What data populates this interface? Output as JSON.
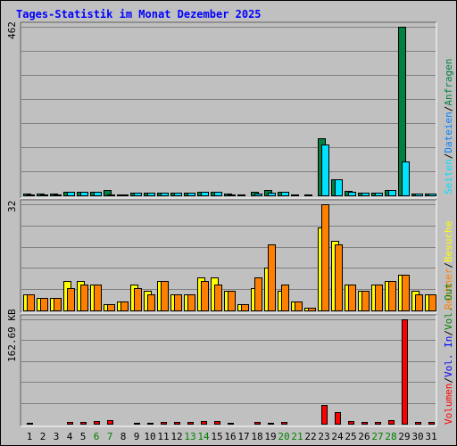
{
  "title": "Tages-Statistik im Monat Dezember 2025",
  "colors": {
    "background": "#c0c0c0",
    "title": "#0000ff",
    "hits": "#008040",
    "files": "#0080ff",
    "pages": "#00e0ff",
    "visits": "#ffff00",
    "sites": "#ff8000",
    "kbytes": "#ff0000",
    "weekend": "#008000",
    "weekday": "#000000"
  },
  "x_labels": [
    "1",
    "2",
    "3",
    "4",
    "5",
    "6",
    "7",
    "8",
    "9",
    "10",
    "11",
    "12",
    "13",
    "14",
    "15",
    "16",
    "17",
    "18",
    "19",
    "20",
    "21",
    "22",
    "23",
    "24",
    "25",
    "26",
    "27",
    "28",
    "29",
    "30",
    "31"
  ],
  "weekend_days": [
    6,
    7,
    13,
    14,
    20,
    21,
    27,
    28
  ],
  "chart_data": [
    {
      "type": "bar",
      "name": "hits-files-pages",
      "ymax_label": "462",
      "ylim": [
        0,
        462
      ],
      "legend": {
        "hits": "Anfragen",
        "sep1": "/",
        "files": "Dateien",
        "sep2": "/",
        "pages": "Seiten"
      },
      "series": [
        {
          "name": "Anfragen",
          "color": "#008040",
          "values": [
            7,
            7,
            7,
            13,
            13,
            13,
            17,
            6,
            10,
            10,
            10,
            10,
            10,
            13,
            13,
            8,
            4,
            11,
            17,
            13,
            4,
            4,
            158,
            47,
            14,
            10,
            10,
            17,
            462,
            8,
            8
          ]
        },
        {
          "name": "Seiten",
          "color": "#00e0ff",
          "values": [
            6,
            6,
            6,
            12,
            12,
            12,
            5,
            5,
            9,
            9,
            9,
            9,
            9,
            11,
            11,
            6,
            3,
            8,
            10,
            11,
            3,
            3,
            141,
            47,
            12,
            9,
            9,
            16,
            95,
            7,
            7
          ]
        }
      ]
    },
    {
      "type": "bar",
      "name": "visits-sites",
      "ymax_label": "32",
      "ylim": [
        0,
        32
      ],
      "legend": {
        "visits": "Besuche",
        "sep1": "/",
        "sites": "Rechner"
      },
      "series": [
        {
          "name": "Besuche",
          "color": "#ffff00",
          "values": [
            5,
            4,
            4,
            9,
            9,
            8,
            2,
            3,
            8,
            6,
            9,
            5,
            5,
            10,
            10,
            6,
            2,
            7,
            13,
            6,
            3,
            1,
            25,
            21,
            8,
            6,
            8,
            9,
            11,
            6,
            5
          ]
        },
        {
          "name": "Rechner",
          "color": "#ff8000",
          "values": [
            5,
            4,
            4,
            7,
            8,
            8,
            2,
            3,
            7,
            5,
            9,
            5,
            5,
            9,
            8,
            6,
            2,
            10,
            20,
            8,
            3,
            1,
            32,
            20,
            8,
            6,
            8,
            9,
            11,
            5,
            5
          ]
        }
      ]
    },
    {
      "type": "bar",
      "name": "kbytes",
      "ymax_label": "162.69 KB",
      "ylim": [
        0,
        162.69
      ],
      "legend": {
        "kbytes": "Volumen",
        "sep1": "/",
        "vol_in": "Vol. In",
        "sep2": "/",
        "vol_out": "Vol. Out"
      },
      "legend_colors": {
        "vol_in": "#0000ff",
        "vol_out": "#008000"
      },
      "series": [
        {
          "name": "Volumen",
          "color": "#ff0000",
          "values": [
            3,
            2,
            2,
            4,
            4,
            5,
            7,
            2,
            3,
            3,
            4,
            4,
            4,
            5,
            6,
            3,
            2,
            4,
            3,
            4,
            2,
            2,
            31,
            19,
            6,
            4,
            4,
            7,
            162.69,
            4,
            4
          ]
        }
      ]
    }
  ]
}
